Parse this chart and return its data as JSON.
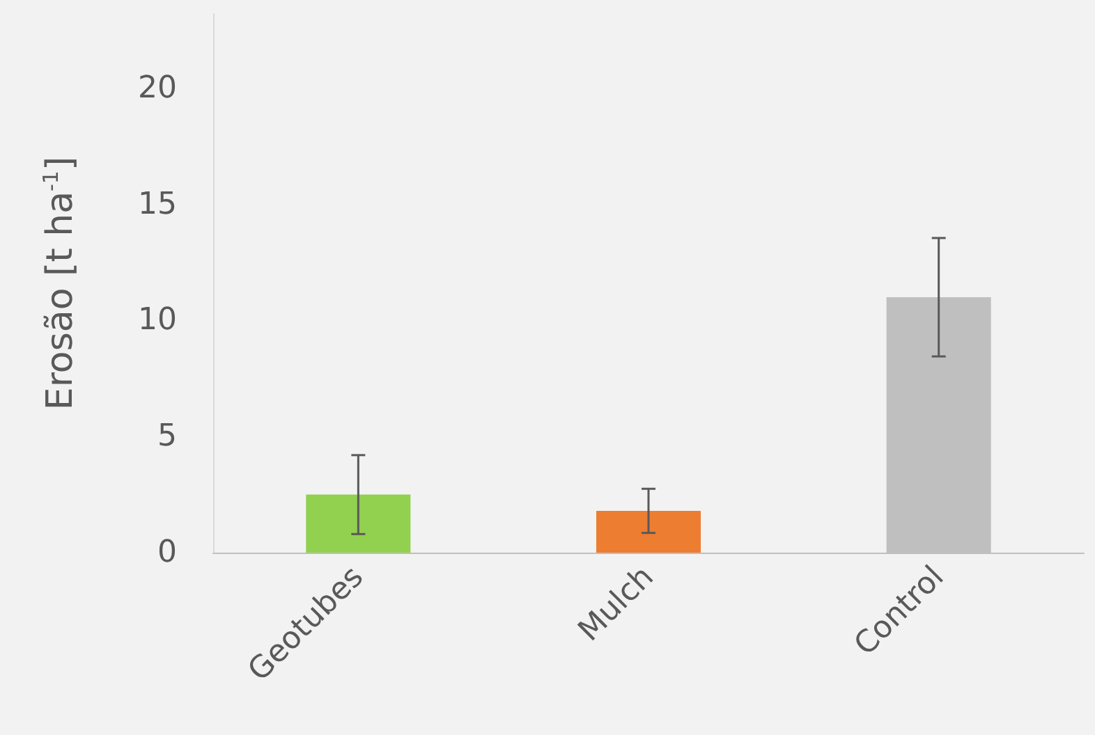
{
  "chart_data": {
    "type": "bar",
    "ylabel": "Erosão [t ha$^{-1}$]",
    "categories": [
      "Geotubes",
      "Mulch",
      "Control"
    ],
    "values": [
      2.5,
      1.8,
      11.0
    ],
    "colors": [
      "#92d050",
      "#ed7d31",
      "#bfbfbf"
    ],
    "errors": [
      1.7,
      0.95,
      2.55
    ],
    "ylim": [
      0,
      23.2
    ],
    "yticks": [
      0,
      5,
      10,
      15,
      20
    ],
    "grid": false
  }
}
